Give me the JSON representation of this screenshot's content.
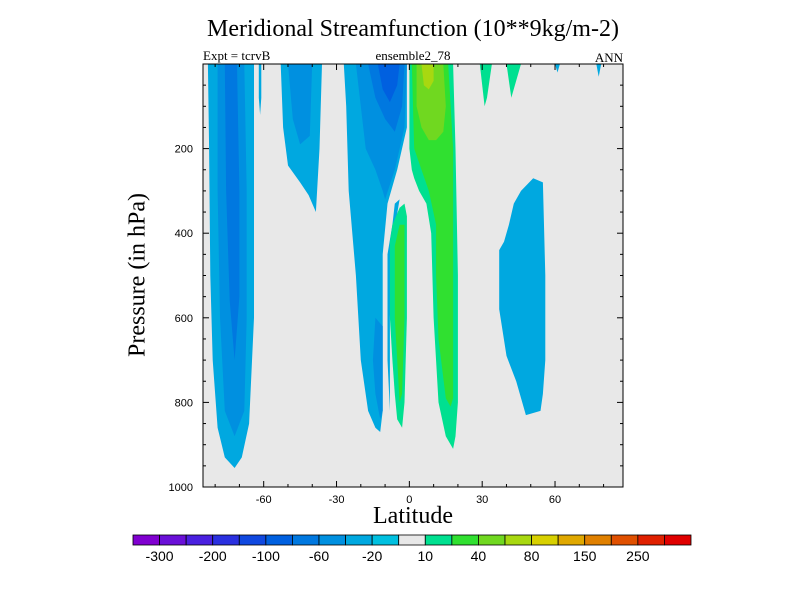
{
  "chart_data": {
    "type": "contour",
    "title": "Meridional Streamfunction (10**9kg/m-2)",
    "left_subtitle": "Expt = tcrvB",
    "center_subtitle": "ensemble2_78",
    "right_subtitle": "ANN",
    "xlabel": "Latitude",
    "ylabel": "Pressure (in hPa)",
    "xlim": [
      -85,
      88
    ],
    "ylim": [
      1000,
      0
    ],
    "x_ticks": [
      -60,
      -30,
      0,
      30,
      60
    ],
    "y_ticks": [
      200,
      400,
      600,
      800,
      1000
    ],
    "colorbar": {
      "levels": [
        -300,
        -250,
        -200,
        -150,
        -100,
        -80,
        -60,
        -40,
        -20,
        -10,
        10,
        20,
        40,
        60,
        80,
        100,
        150,
        200,
        250,
        300
      ],
      "labels": [
        "-300",
        "-200",
        "-100",
        "-60",
        "-20",
        "10",
        "40",
        "80",
        "150",
        "250"
      ],
      "colors": [
        "#8000d0",
        "#6a10d8",
        "#4a20e0",
        "#2a30e0",
        "#1048e0",
        "#0060e0",
        "#0078e0",
        "#0090e0",
        "#00a8e0",
        "#00c0e0",
        "#e8e8e8",
        "#00e090",
        "#30e030",
        "#70d820",
        "#a8d810",
        "#d8d000",
        "#e0a800",
        "#e08000",
        "#e05000",
        "#e02000",
        "#e00000"
      ]
    },
    "contour_regions": [
      {
        "name": "sh-deep-cell-outer",
        "level": -20,
        "points": [
          [
            -83,
            0
          ],
          [
            -77,
            0
          ],
          [
            -69,
            0
          ],
          [
            -64,
            0
          ],
          [
            -64,
            300
          ],
          [
            -64,
            600
          ],
          [
            -66,
            850
          ],
          [
            -69,
            930
          ],
          [
            -72,
            955
          ],
          [
            -76,
            930
          ],
          [
            -79,
            860
          ],
          [
            -81,
            700
          ],
          [
            -82,
            500
          ],
          [
            -82.5,
            200
          ]
        ]
      },
      {
        "name": "sh-deep-cell-mid",
        "level": -40,
        "points": [
          [
            -79,
            0
          ],
          [
            -68,
            0
          ],
          [
            -67,
            300
          ],
          [
            -67,
            600
          ],
          [
            -68,
            820
          ],
          [
            -72,
            880
          ],
          [
            -76,
            820
          ],
          [
            -78,
            600
          ],
          [
            -79,
            300
          ]
        ]
      },
      {
        "name": "sh-deep-cell-core",
        "level": -60,
        "points": [
          [
            -76,
            0
          ],
          [
            -71,
            0
          ],
          [
            -70,
            300
          ],
          [
            -70,
            550
          ],
          [
            -72,
            700
          ],
          [
            -74,
            560
          ],
          [
            -75.5,
            300
          ]
        ]
      },
      {
        "name": "sh-thin-strand",
        "level": -20,
        "points": [
          [
            -62,
            0
          ],
          [
            -61,
            0
          ],
          [
            -61,
            80
          ],
          [
            -61.5,
            120
          ],
          [
            -62,
            80
          ]
        ]
      },
      {
        "name": "sh-mid-cell-outer",
        "level": -20,
        "points": [
          [
            -53,
            0
          ],
          [
            -36,
            0
          ],
          [
            -37,
            200
          ],
          [
            -38.5,
            350
          ],
          [
            -41.5,
            310
          ],
          [
            -45,
            280
          ],
          [
            -50,
            240
          ],
          [
            -52,
            150
          ]
        ]
      },
      {
        "name": "sh-mid-cell-inner",
        "level": -40,
        "points": [
          [
            -50,
            0
          ],
          [
            -40,
            0
          ],
          [
            -41,
            170
          ],
          [
            -45,
            190
          ],
          [
            -48,
            130
          ]
        ]
      },
      {
        "name": "hadley-south-outer",
        "level": -20,
        "points": [
          [
            -27,
            0
          ],
          [
            -1,
            0
          ],
          [
            -1,
            150
          ],
          [
            -5,
            250
          ],
          [
            -9,
            330
          ],
          [
            -11,
            450
          ],
          [
            -11,
            600
          ],
          [
            -11,
            820
          ],
          [
            -12,
            870
          ],
          [
            -14,
            860
          ],
          [
            -17,
            820
          ],
          [
            -20,
            700
          ],
          [
            -22,
            500
          ],
          [
            -25,
            300
          ],
          [
            -26,
            100
          ]
        ]
      },
      {
        "name": "hadley-south-mid",
        "level": -40,
        "points": [
          [
            -22,
            0
          ],
          [
            -1,
            0
          ],
          [
            -2,
            150
          ],
          [
            -6,
            250
          ],
          [
            -10,
            320
          ],
          [
            -11,
            300
          ],
          [
            -14,
            250
          ],
          [
            -18,
            200
          ],
          [
            -20,
            100
          ]
        ]
      },
      {
        "name": "hadley-south-inner",
        "level": -60,
        "points": [
          [
            -17,
            0
          ],
          [
            -2,
            0
          ],
          [
            -3,
            100
          ],
          [
            -6,
            160
          ],
          [
            -10,
            130
          ],
          [
            -14,
            80
          ]
        ]
      },
      {
        "name": "hadley-south-core",
        "level": -80,
        "points": [
          [
            -13,
            0
          ],
          [
            -4,
            0
          ],
          [
            -5,
            50
          ],
          [
            -8,
            90
          ],
          [
            -11,
            60
          ]
        ]
      },
      {
        "name": "sh-small-patch",
        "level": -40,
        "points": [
          [
            -14,
            600
          ],
          [
            -11,
            620
          ],
          [
            -11,
            820
          ],
          [
            -12,
            840
          ],
          [
            -14,
            780
          ],
          [
            -15,
            700
          ]
        ]
      },
      {
        "name": "equatorial-gap-wedge",
        "level": -20,
        "points": [
          [
            -9,
            450
          ],
          [
            -7,
            380
          ],
          [
            -6,
            330
          ],
          [
            -4,
            320
          ],
          [
            -7,
            420
          ],
          [
            -8,
            600
          ],
          [
            -8,
            820
          ],
          [
            -9,
            700
          ]
        ]
      },
      {
        "name": "nh-lower-branch-outer",
        "level": 10,
        "points": [
          [
            -8,
            420
          ],
          [
            -7,
            380
          ],
          [
            -4,
            340
          ],
          [
            -2,
            330
          ],
          [
            -1,
            360
          ],
          [
            -1,
            600
          ],
          [
            -2,
            800
          ],
          [
            -3,
            860
          ],
          [
            -5,
            840
          ],
          [
            -6,
            780
          ],
          [
            -7,
            700
          ],
          [
            -8,
            600
          ]
        ]
      },
      {
        "name": "nh-lower-branch-inner",
        "level": 20,
        "points": [
          [
            -6,
            430
          ],
          [
            -4,
            380
          ],
          [
            -2,
            380
          ],
          [
            -2,
            600
          ],
          [
            -3,
            780
          ],
          [
            -4,
            800
          ],
          [
            -5,
            700
          ],
          [
            -6,
            600
          ]
        ]
      },
      {
        "name": "hadley-north-outer",
        "level": 10,
        "points": [
          [
            0,
            0
          ],
          [
            18,
            0
          ],
          [
            19,
            200
          ],
          [
            20,
            500
          ],
          [
            20,
            800
          ],
          [
            19,
            880
          ],
          [
            18,
            910
          ],
          [
            15,
            880
          ],
          [
            12,
            800
          ],
          [
            10,
            600
          ],
          [
            9,
            400
          ],
          [
            7,
            330
          ],
          [
            4,
            300
          ],
          [
            2,
            270
          ],
          [
            1,
            250
          ],
          [
            0,
            200
          ]
        ]
      },
      {
        "name": "hadley-north-mid",
        "level": 20,
        "points": [
          [
            1,
            0
          ],
          [
            16,
            0
          ],
          [
            18,
            200
          ],
          [
            18,
            500
          ],
          [
            18,
            790
          ],
          [
            17,
            810
          ],
          [
            15,
            790
          ],
          [
            12,
            650
          ],
          [
            11,
            500
          ],
          [
            11,
            380
          ],
          [
            8,
            300
          ],
          [
            5,
            250
          ],
          [
            2,
            200
          ]
        ]
      },
      {
        "name": "hadley-north-inner",
        "level": 40,
        "points": [
          [
            3,
            0
          ],
          [
            14,
            0
          ],
          [
            15,
            100
          ],
          [
            14,
            160
          ],
          [
            11,
            180
          ],
          [
            8,
            180
          ],
          [
            5,
            150
          ],
          [
            3,
            100
          ]
        ]
      },
      {
        "name": "hadley-north-core",
        "level": 60,
        "points": [
          [
            5,
            0
          ],
          [
            10,
            0
          ],
          [
            10,
            40
          ],
          [
            8,
            60
          ],
          [
            6,
            50
          ]
        ]
      },
      {
        "name": "nh-thin-strand-1",
        "level": 10,
        "points": [
          [
            29,
            0
          ],
          [
            34,
            0
          ],
          [
            32,
            80
          ],
          [
            31,
            100
          ]
        ]
      },
      {
        "name": "nh-thin-strand-2",
        "level": 10,
        "points": [
          [
            40,
            0
          ],
          [
            46,
            0
          ],
          [
            42,
            80
          ]
        ]
      },
      {
        "name": "nh-mid-cell",
        "level": -20,
        "points": [
          [
            37,
            580
          ],
          [
            37,
            440
          ],
          [
            39,
            420
          ],
          [
            41,
            380
          ],
          [
            43,
            330
          ],
          [
            46,
            300
          ],
          [
            51,
            270
          ],
          [
            55,
            280
          ],
          [
            56,
            500
          ],
          [
            56,
            700
          ],
          [
            55,
            780
          ],
          [
            54,
            820
          ],
          [
            48,
            830
          ],
          [
            44,
            750
          ],
          [
            40,
            690
          ]
        ]
      },
      {
        "name": "nh-tip-1",
        "level": -20,
        "points": [
          [
            60,
            0
          ],
          [
            62,
            0
          ],
          [
            61,
            20
          ]
        ]
      },
      {
        "name": "nh-tip-2",
        "level": -20,
        "points": [
          [
            77,
            0
          ],
          [
            79,
            0
          ],
          [
            78,
            30
          ]
        ]
      }
    ]
  }
}
